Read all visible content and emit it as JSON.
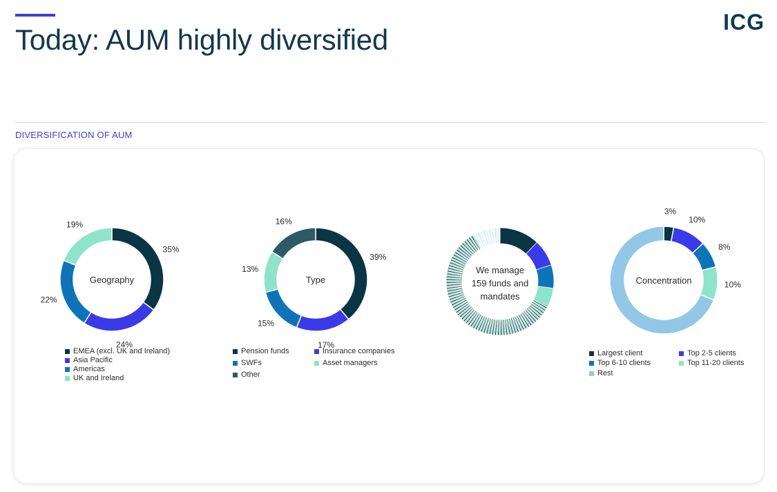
{
  "header": {
    "title": "Today: AUM highly diversified",
    "logo_text": "ICG"
  },
  "section_label": "DIVERSIFICATION OF AUM",
  "colors": {
    "accent": "#3d3de0",
    "dark_teal": "#0a3544",
    "blue": "#3a3ae8",
    "mid_blue": "#0f73b9",
    "mint": "#8ee3c8",
    "slate": "#2e5a68",
    "light_blue": "#93c7e6"
  },
  "chart_data": [
    {
      "type": "pie",
      "center_label": "Geography",
      "categories": [
        "EMEA (excl. UK and Ireland)",
        "Asia Pacific",
        "Americas",
        "UK and Ireland"
      ],
      "values": [
        35,
        24,
        22,
        19
      ],
      "labels": [
        "35%",
        "24%",
        "22%",
        "19%"
      ],
      "colors": [
        "#0a3544",
        "#3a3ae8",
        "#0f73b9",
        "#8ee3c8"
      ]
    },
    {
      "type": "pie",
      "center_label": "Type",
      "categories": [
        "Pension funds",
        "Insurance companies",
        "SWFs",
        "Asset managers",
        "Other"
      ],
      "values": [
        39,
        17,
        15,
        13,
        16
      ],
      "labels": [
        "39%",
        "17%",
        "15%",
        "13%",
        "16%"
      ],
      "colors": [
        "#0a3544",
        "#3a3ae8",
        "#0f73b9",
        "#8ee3c8",
        "#2e5a68"
      ]
    },
    {
      "type": "pie",
      "center_label": "We manage 159 funds and mandates",
      "segment_count": 159,
      "leading_values": [
        12,
        8,
        7,
        6
      ],
      "colors": [
        "#0a3544",
        "#3a3ae8",
        "#0f73b9",
        "#8ee3c8"
      ]
    },
    {
      "type": "pie",
      "center_label": "Concentration",
      "categories": [
        "Largest client",
        "Top 2-5 clients",
        "Top 6-10 clients",
        "Top 11-20 clients",
        "Rest"
      ],
      "values": [
        3,
        10,
        8,
        10,
        69
      ],
      "labels": [
        "3%",
        "10%",
        "8%",
        "10%",
        ""
      ],
      "colors": [
        "#0a3544",
        "#3a3ae8",
        "#0f73b9",
        "#8ee3c8",
        "#93c7e6"
      ]
    }
  ]
}
